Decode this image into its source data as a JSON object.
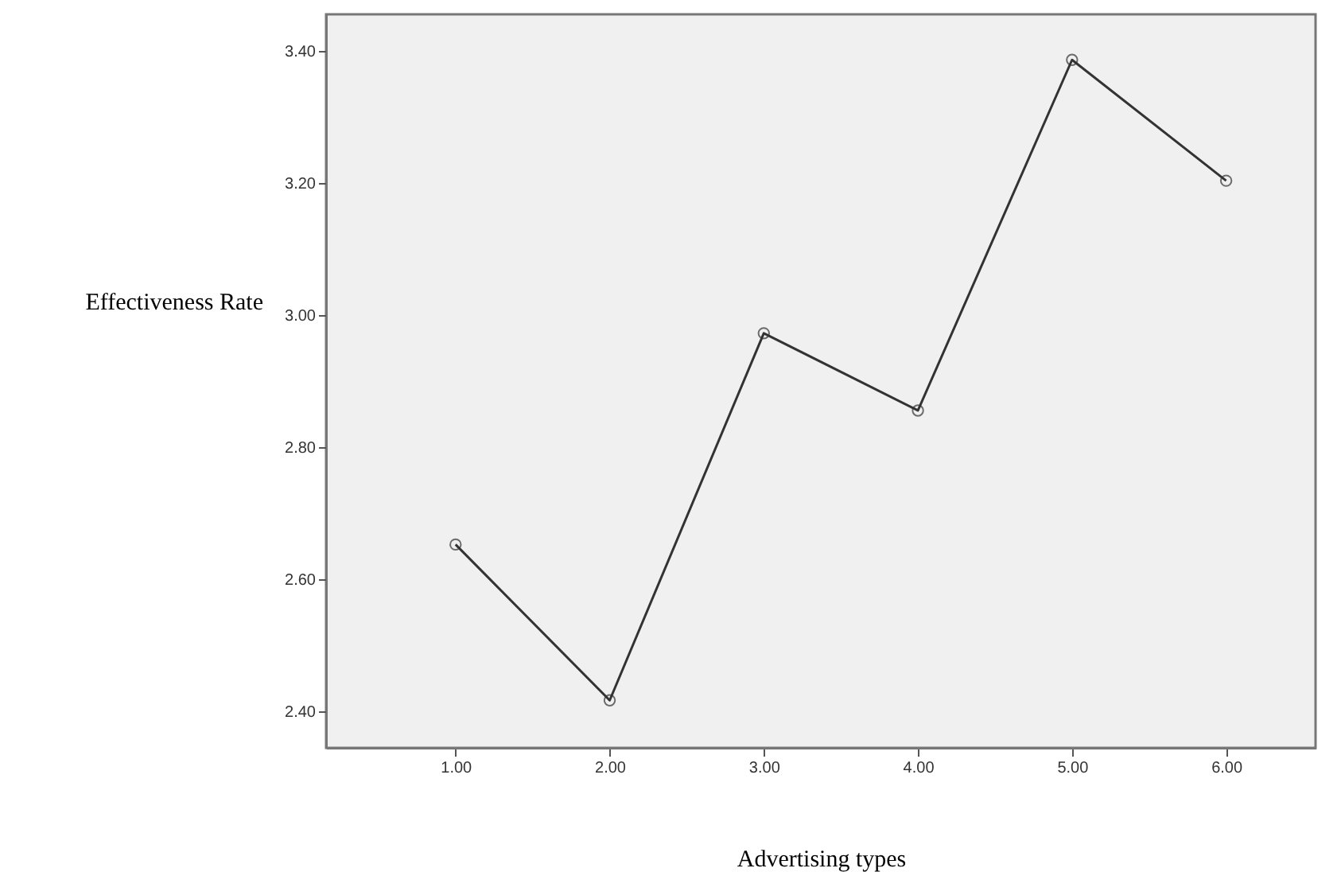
{
  "chart_data": {
    "type": "line",
    "xlabel": "Advertising types",
    "ylabel": "Effectiveness Rate",
    "x": [
      1,
      2,
      3,
      4,
      5,
      6
    ],
    "series": [
      {
        "color": "#333333",
        "values": [
          2.652,
          2.416,
          2.972,
          2.855,
          3.386,
          3.203
        ]
      }
    ],
    "xlim": [
      0.16,
      6.58
    ],
    "xticks": [
      {
        "value": 1,
        "label": "1.00"
      },
      {
        "value": 2,
        "label": "2.00"
      },
      {
        "value": 3,
        "label": "3.00"
      },
      {
        "value": 4,
        "label": "4.00"
      },
      {
        "value": 5,
        "label": "5.00"
      },
      {
        "value": 6,
        "label": "6.00"
      }
    ],
    "ylim": [
      2.344,
      3.455
    ],
    "yticks": [
      {
        "value": 2.4,
        "label": "2.40"
      },
      {
        "value": 2.6,
        "label": "2.60"
      },
      {
        "value": 2.8,
        "label": "2.80"
      },
      {
        "value": 3.0,
        "label": "3.00"
      },
      {
        "value": 3.2,
        "label": "3.20"
      },
      {
        "value": 3.4,
        "label": "3.40"
      }
    ],
    "marker": "circle",
    "line_style": "solid"
  }
}
